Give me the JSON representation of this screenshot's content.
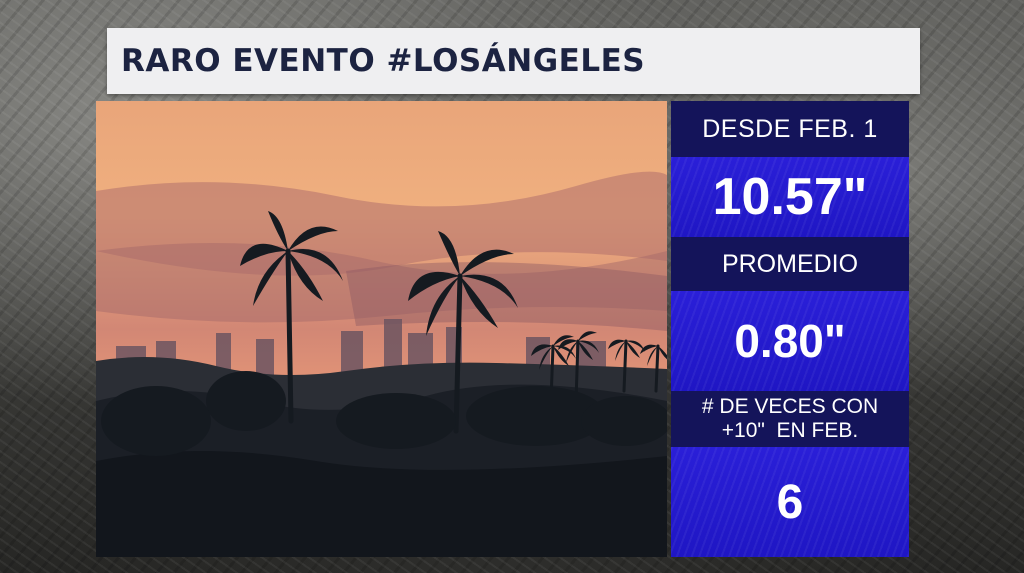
{
  "title": "RARO EVENTO #LOSÁNGELES",
  "stats": {
    "label_1": "DESDE FEB. 1",
    "value_1": "10.57\"",
    "label_2": "PROMEDIO",
    "value_2": "0.80\"",
    "label_3_line1": "# DE VECES CON",
    "label_3_line2": "+10\"  EN FEB.",
    "value_3": "6"
  },
  "colors": {
    "title_bg": "#efeff1",
    "title_text": "#1c2341",
    "label_bg": "#14145a",
    "value_bg": "#2a1fd8"
  }
}
